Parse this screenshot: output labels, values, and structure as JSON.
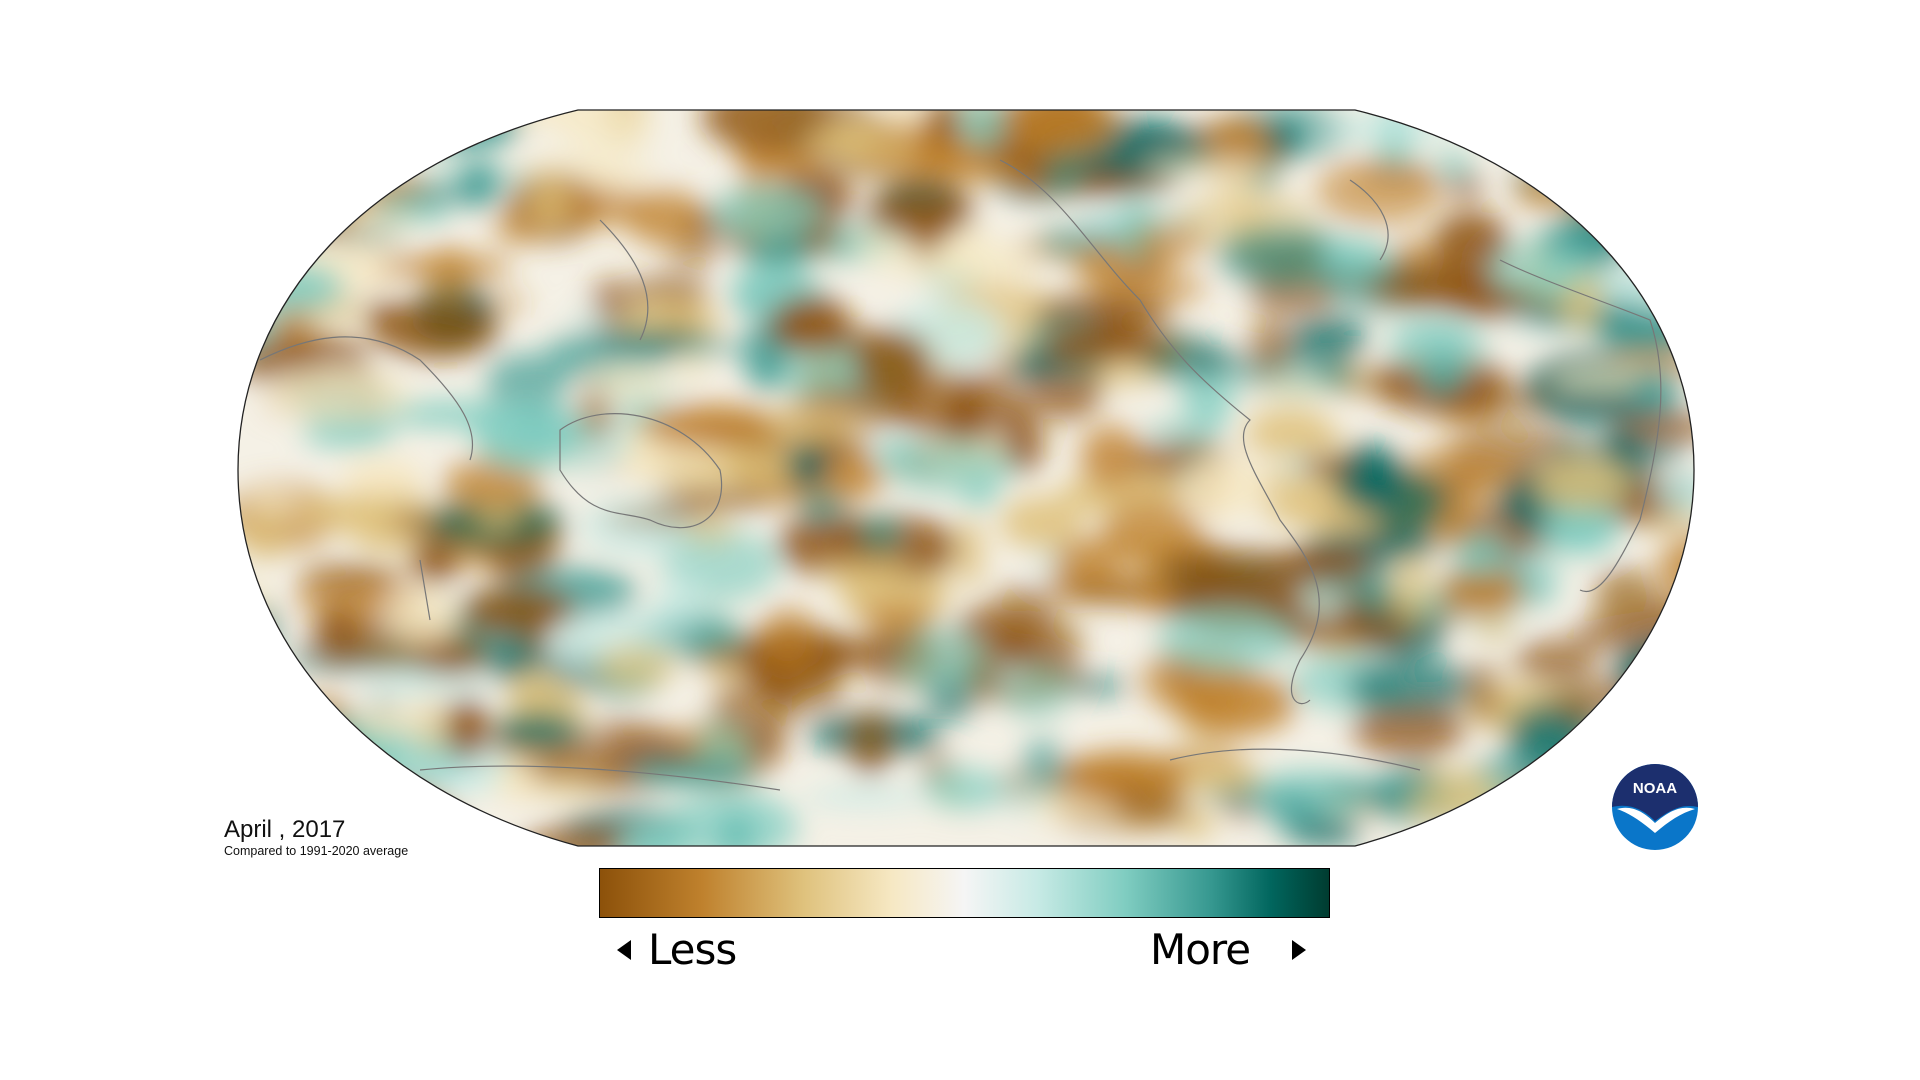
{
  "title": "April , 2017",
  "subtitle": "Compared to 1991-2020 average",
  "legend": {
    "less_label": "Less",
    "more_label": "More",
    "colors": [
      "#8c510a",
      "#bf812d",
      "#dfc27d",
      "#f6e8c3",
      "#f5f5f5",
      "#c7eae5",
      "#80cdc1",
      "#35978f",
      "#01665e",
      "#003c30"
    ]
  },
  "map": {
    "projection": "Robinson",
    "center_longitude": "Pacific",
    "variable": "precipitation anomaly"
  },
  "logo": {
    "text": "NOAA",
    "colors": [
      "#1c2f6e",
      "#0a76c9"
    ]
  }
}
